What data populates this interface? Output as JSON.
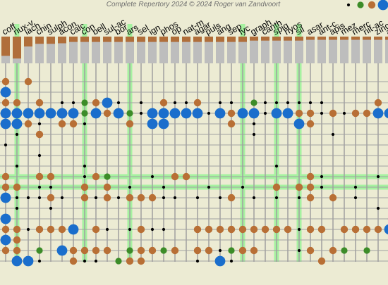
{
  "header": {
    "title": "Complete Repertory 2024 © 2024 Roger van Zandvoort"
  },
  "grade_legend": [
    {
      "grade": 1,
      "color": "#000000"
    },
    {
      "grade": 2,
      "color": "#3c8c28"
    },
    {
      "grade": 3,
      "color": "#b86f35"
    },
    {
      "grade": 4,
      "color": "#1a6ecc"
    }
  ],
  "colors": {
    "background": "#ecebd3",
    "grid": "#a0a0a0",
    "highlight": "#a6f2a0",
    "bar_score": "#b06e3a",
    "bar_count": "#bdbdbd"
  },
  "chart_data": {
    "type": "grid",
    "remedies": [
      {
        "name": "coff",
        "highlight": false,
        "score": 0.72
      },
      {
        "name": "nux-v",
        "highlight": true,
        "score": 0.82
      },
      {
        "name": "lach",
        "highlight": false,
        "score": 0.37
      },
      {
        "name": "chin",
        "highlight": false,
        "score": 0.27
      },
      {
        "name": "sulph",
        "highlight": false,
        "score": 0.27
      },
      {
        "name": "acon",
        "highlight": false,
        "score": 0.25
      },
      {
        "name": "calc",
        "highlight": false,
        "score": 0.2
      },
      {
        "name": "con",
        "highlight": true,
        "score": 0.2
      },
      {
        "name": "bell",
        "highlight": false,
        "score": 0.2
      },
      {
        "name": "sul-ac",
        "highlight": false,
        "score": 0.2
      },
      {
        "name": "bor",
        "highlight": false,
        "score": 0.2
      },
      {
        "name": "ars",
        "highlight": true,
        "score": 0.2
      },
      {
        "name": "sel",
        "highlight": false,
        "score": 0.2
      },
      {
        "name": "ign",
        "highlight": false,
        "score": 0.2
      },
      {
        "name": "phos",
        "highlight": false,
        "score": 0.2
      },
      {
        "name": "op",
        "highlight": false,
        "score": 0.2
      },
      {
        "name": "nat-m",
        "highlight": false,
        "score": 0.2
      },
      {
        "name": "agar",
        "highlight": false,
        "score": 0.2
      },
      {
        "name": "puls",
        "highlight": false,
        "score": 0.2
      },
      {
        "name": "ang",
        "highlight": false,
        "score": 0.2
      },
      {
        "name": "sep",
        "highlight": false,
        "score": 0.2
      },
      {
        "name": "lyc",
        "highlight": true,
        "score": 0.2
      },
      {
        "name": "graph",
        "highlight": false,
        "score": 0.15
      },
      {
        "name": "canth",
        "highlight": false,
        "score": 0.15
      },
      {
        "name": "spig",
        "highlight": true,
        "score": 0.15
      },
      {
        "name": "hyos",
        "highlight": false,
        "score": 0.15
      },
      {
        "name": "sil",
        "highlight": true,
        "score": 0.15
      },
      {
        "name": "asar",
        "highlight": false,
        "score": 0.12
      },
      {
        "name": "ant-c",
        "highlight": false,
        "score": 0.12
      },
      {
        "name": "apis",
        "highlight": false,
        "score": 0.12
      },
      {
        "name": "mez",
        "highlight": false,
        "score": 0.12
      },
      {
        "name": "merc",
        "highlight": false,
        "score": 0.12
      },
      {
        "name": "nit-ac",
        "highlight": false,
        "score": 0.12
      },
      {
        "name": "zinc",
        "highlight": false,
        "score": 0.12
      },
      {
        "name": "alum",
        "highlight": false,
        "score": 0.12
      }
    ],
    "highlight_rows": [
      9,
      10
    ],
    "rubrics": [
      [
        [
          0,
          3
        ],
        [
          2,
          3
        ]
      ],
      [
        [
          0,
          4
        ]
      ],
      [
        [
          0,
          3
        ],
        [
          1,
          3
        ],
        [
          3,
          3
        ],
        [
          5,
          1
        ],
        [
          6,
          1
        ],
        [
          7,
          2
        ],
        [
          8,
          3
        ],
        [
          9,
          4
        ],
        [
          10,
          1
        ],
        [
          12,
          1
        ],
        [
          14,
          3
        ],
        [
          15,
          1
        ],
        [
          16,
          1
        ],
        [
          17,
          3
        ],
        [
          19,
          1
        ],
        [
          20,
          1
        ],
        [
          22,
          2
        ],
        [
          23,
          1
        ],
        [
          24,
          1
        ],
        [
          25,
          1
        ],
        [
          26,
          1
        ],
        [
          27,
          1
        ],
        [
          28,
          1
        ],
        [
          33,
          3
        ]
      ],
      [
        [
          0,
          4
        ],
        [
          1,
          4
        ],
        [
          2,
          4
        ],
        [
          3,
          4
        ],
        [
          4,
          4
        ],
        [
          5,
          4
        ],
        [
          6,
          4
        ],
        [
          7,
          2
        ],
        [
          8,
          4
        ],
        [
          9,
          3
        ],
        [
          10,
          4
        ],
        [
          11,
          2
        ],
        [
          12,
          1
        ],
        [
          13,
          4
        ],
        [
          14,
          4
        ],
        [
          15,
          4
        ],
        [
          16,
          4
        ],
        [
          17,
          4
        ],
        [
          18,
          1
        ],
        [
          19,
          4
        ],
        [
          20,
          3
        ],
        [
          21,
          4
        ],
        [
          22,
          4
        ],
        [
          23,
          1
        ],
        [
          24,
          4
        ],
        [
          25,
          4
        ],
        [
          26,
          3
        ],
        [
          27,
          3
        ],
        [
          28,
          1
        ],
        [
          29,
          3
        ],
        [
          30,
          1
        ],
        [
          31,
          3
        ],
        [
          32,
          3
        ],
        [
          33,
          4
        ],
        [
          34,
          4
        ]
      ],
      [
        [
          0,
          4
        ],
        [
          1,
          4
        ],
        [
          2,
          3
        ],
        [
          3,
          1
        ],
        [
          5,
          3
        ],
        [
          6,
          3
        ],
        [
          7,
          1
        ],
        [
          11,
          3
        ],
        [
          13,
          4
        ],
        [
          14,
          4
        ],
        [
          20,
          3
        ],
        [
          22,
          1
        ],
        [
          26,
          4
        ],
        [
          27,
          3
        ]
      ],
      [
        [
          1,
          1
        ],
        [
          3,
          3
        ],
        [
          22,
          1
        ],
        [
          29,
          1
        ]
      ],
      [
        [
          0,
          1
        ]
      ],
      [
        [
          3,
          1
        ]
      ],
      [
        [
          1,
          1
        ],
        [
          7,
          1
        ],
        [
          24,
          1
        ]
      ],
      [
        [
          0,
          3
        ],
        [
          3,
          3
        ],
        [
          4,
          3
        ],
        [
          7,
          1
        ],
        [
          8,
          3
        ],
        [
          9,
          2
        ],
        [
          13,
          1
        ],
        [
          15,
          3
        ],
        [
          16,
          3
        ],
        [
          27,
          3
        ],
        [
          28,
          1
        ],
        [
          33,
          1
        ]
      ],
      [
        [
          0,
          3
        ],
        [
          1,
          3
        ],
        [
          3,
          1
        ],
        [
          4,
          1
        ],
        [
          7,
          3
        ],
        [
          9,
          3
        ],
        [
          11,
          1
        ],
        [
          14,
          1
        ],
        [
          18,
          1
        ],
        [
          21,
          1
        ],
        [
          24,
          3
        ],
        [
          26,
          3
        ],
        [
          27,
          3
        ],
        [
          28,
          1
        ],
        [
          31,
          1
        ]
      ],
      [
        [
          0,
          4
        ],
        [
          1,
          1
        ],
        [
          2,
          1
        ],
        [
          3,
          1
        ],
        [
          4,
          3
        ],
        [
          5,
          1
        ],
        [
          7,
          3
        ],
        [
          8,
          1
        ],
        [
          9,
          3
        ],
        [
          10,
          1
        ],
        [
          11,
          3
        ],
        [
          12,
          3
        ],
        [
          13,
          3
        ],
        [
          14,
          1
        ],
        [
          15,
          1
        ],
        [
          17,
          1
        ],
        [
          19,
          1
        ],
        [
          20,
          3
        ],
        [
          22,
          1
        ],
        [
          24,
          1
        ],
        [
          26,
          1
        ],
        [
          27,
          3
        ],
        [
          29,
          3
        ],
        [
          31,
          1
        ]
      ],
      [
        [
          1,
          1
        ],
        [
          4,
          1
        ],
        [
          33,
          1
        ]
      ],
      [
        [
          0,
          4
        ],
        [
          34,
          1
        ]
      ],
      [
        [
          0,
          3
        ],
        [
          1,
          3
        ],
        [
          2,
          1
        ],
        [
          3,
          3
        ],
        [
          4,
          3
        ],
        [
          5,
          3
        ],
        [
          6,
          4
        ],
        [
          8,
          3
        ],
        [
          9,
          1
        ],
        [
          11,
          1
        ],
        [
          12,
          3
        ],
        [
          13,
          1
        ],
        [
          14,
          1
        ],
        [
          17,
          3
        ],
        [
          18,
          3
        ],
        [
          19,
          3
        ],
        [
          20,
          3
        ],
        [
          21,
          3
        ],
        [
          22,
          3
        ],
        [
          23,
          3
        ],
        [
          24,
          3
        ],
        [
          25,
          3
        ],
        [
          26,
          1
        ],
        [
          27,
          3
        ],
        [
          28,
          3
        ],
        [
          30,
          3
        ],
        [
          31,
          3
        ],
        [
          32,
          3
        ],
        [
          33,
          3
        ],
        [
          34,
          4
        ]
      ],
      [
        [
          0,
          4
        ],
        [
          1,
          3
        ]
      ],
      [
        [
          0,
          3
        ],
        [
          1,
          3
        ],
        [
          3,
          2
        ],
        [
          5,
          4
        ],
        [
          6,
          3
        ],
        [
          7,
          3
        ],
        [
          8,
          3
        ],
        [
          9,
          3
        ],
        [
          11,
          2
        ],
        [
          12,
          3
        ],
        [
          13,
          3
        ],
        [
          14,
          2
        ],
        [
          15,
          3
        ],
        [
          17,
          3
        ],
        [
          18,
          3
        ],
        [
          19,
          1
        ],
        [
          20,
          2
        ],
        [
          21,
          3
        ],
        [
          22,
          3
        ],
        [
          26,
          1
        ],
        [
          27,
          3
        ],
        [
          29,
          3
        ],
        [
          30,
          2
        ],
        [
          32,
          2
        ]
      ],
      [
        [
          1,
          4
        ],
        [
          2,
          4
        ],
        [
          3,
          1
        ],
        [
          6,
          3
        ],
        [
          7,
          1
        ],
        [
          8,
          1
        ],
        [
          10,
          2
        ],
        [
          11,
          3
        ],
        [
          12,
          3
        ],
        [
          17,
          1
        ],
        [
          19,
          4
        ],
        [
          20,
          1
        ],
        [
          28,
          3
        ]
      ]
    ]
  }
}
